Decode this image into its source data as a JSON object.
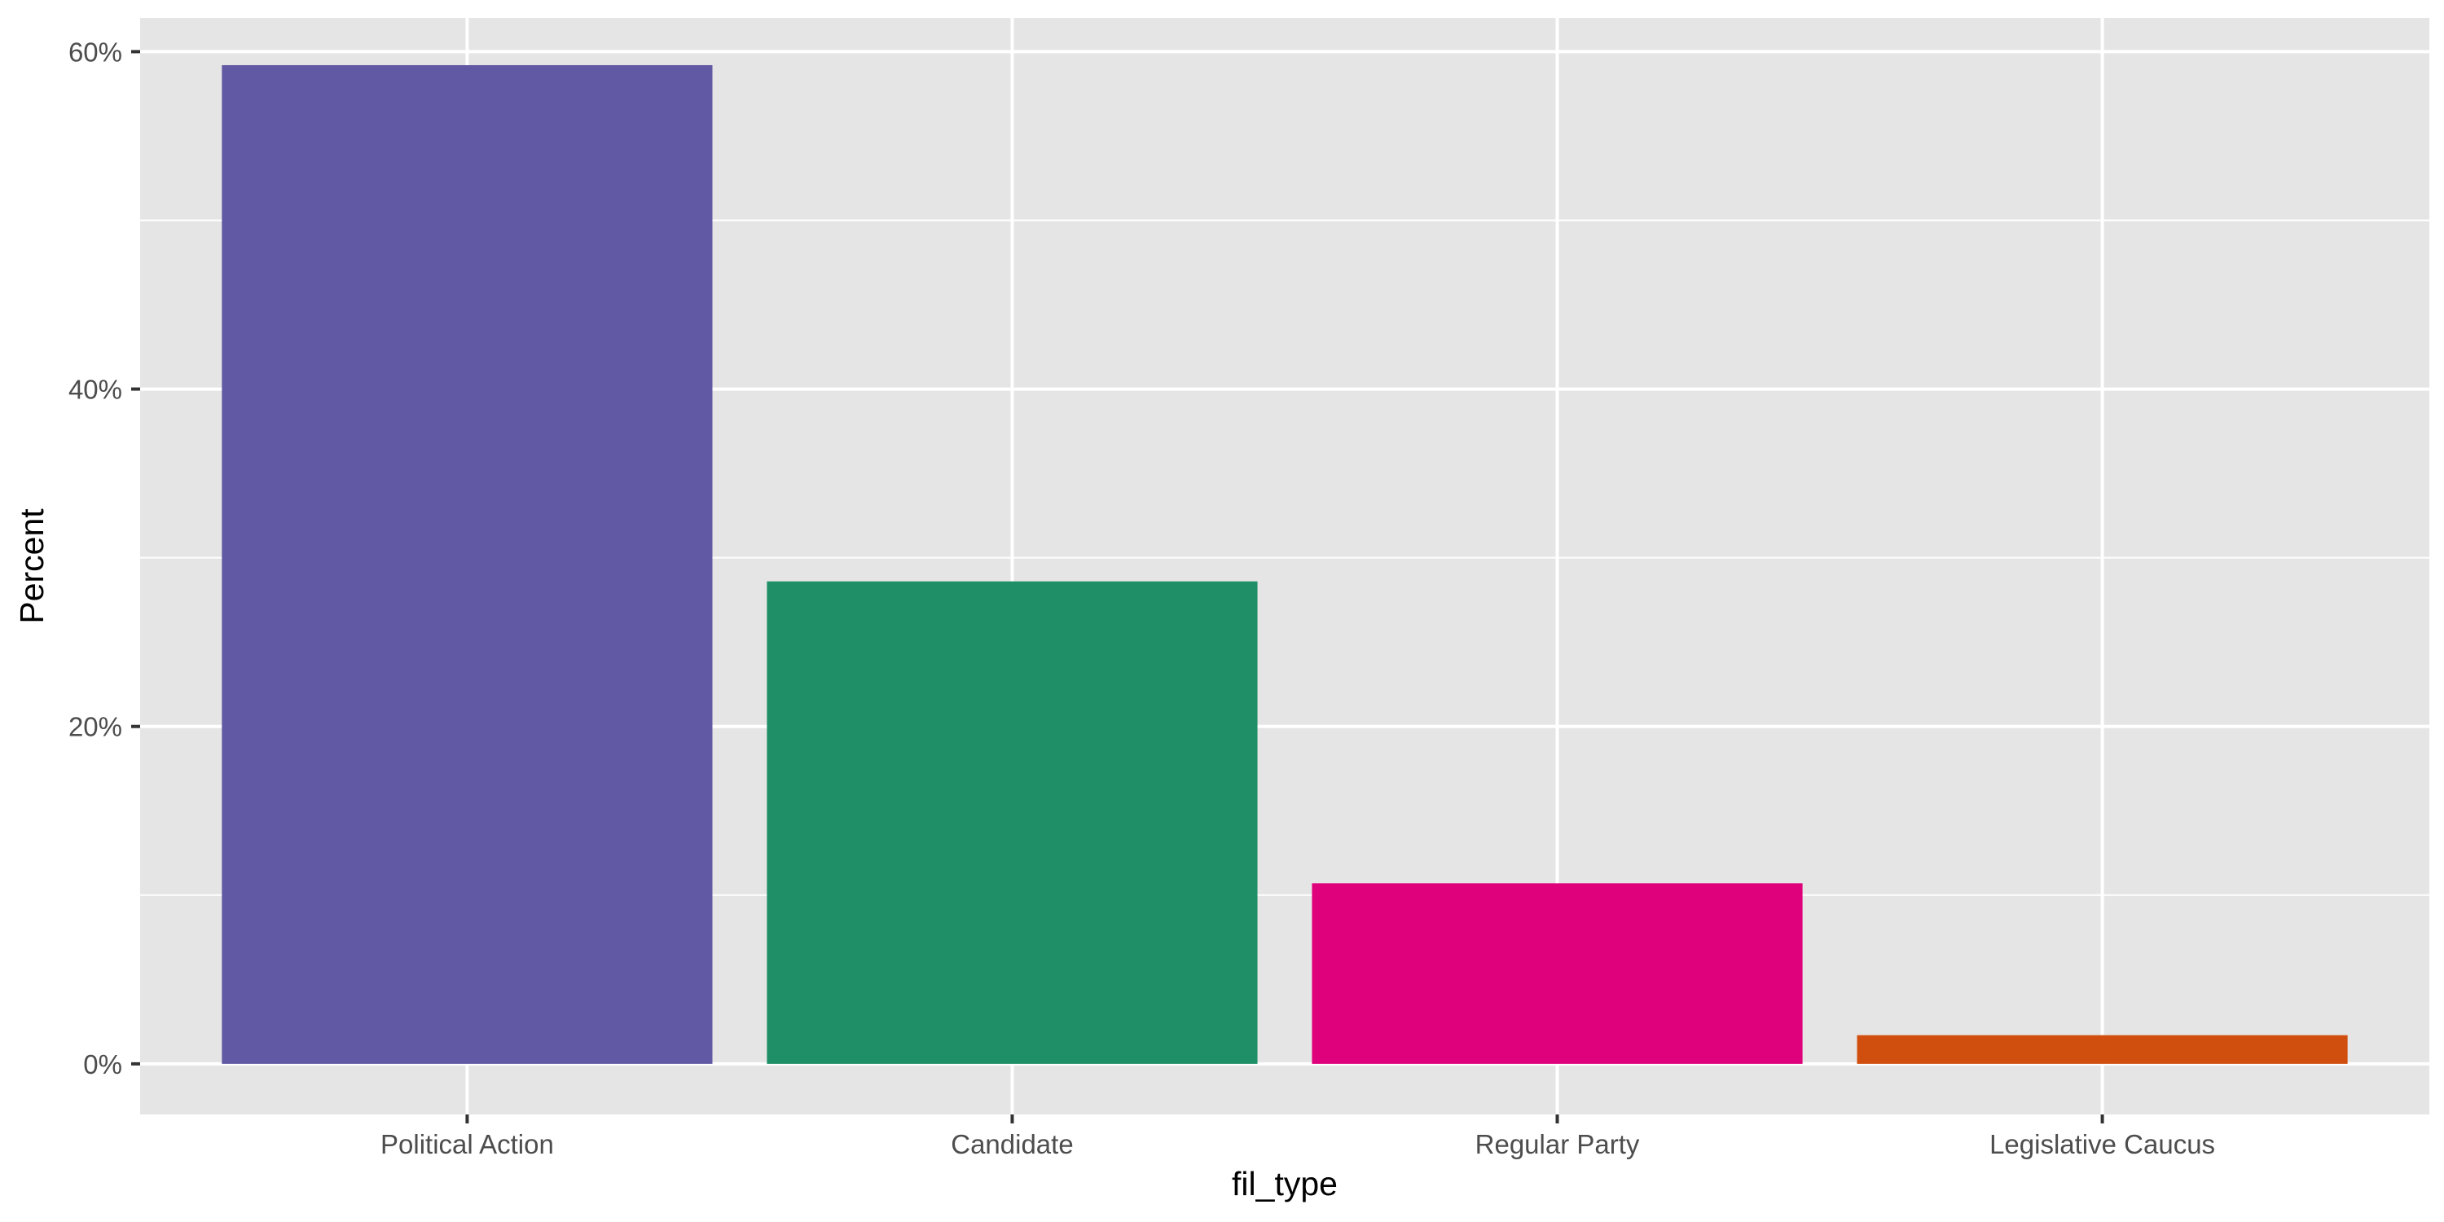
{
  "chart_data": {
    "type": "bar",
    "categories": [
      "Political Action",
      "Candidate",
      "Regular Party",
      "Legislative Caucus"
    ],
    "values": [
      59.2,
      28.6,
      10.7,
      1.7
    ],
    "colors": [
      "#6159a3",
      "#1e8f66",
      "#df007b",
      "#d14f0e"
    ],
    "xlabel": "fil_type",
    "ylabel": "Percent",
    "ylim": [
      -3,
      62
    ],
    "yticks": [
      0,
      20,
      40,
      60
    ],
    "ytick_labels": [
      "0%",
      "20%",
      "40%",
      "60%"
    ],
    "grid": true,
    "panel_color": "#e5e5e5",
    "grid_color": "#ffffff"
  }
}
